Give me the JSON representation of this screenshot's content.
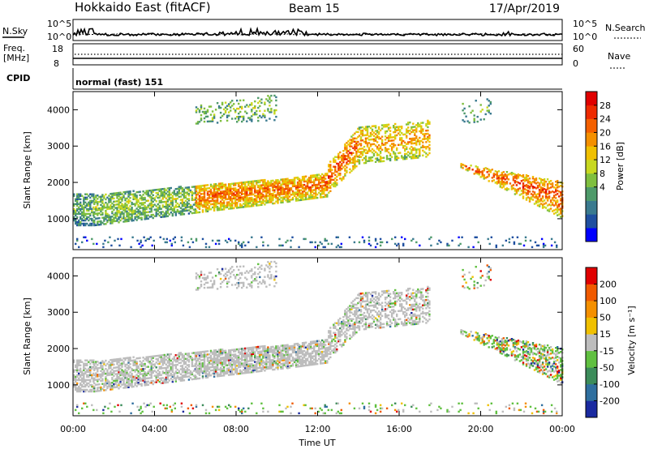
{
  "header": {
    "station": "Hokkaido East (fitACF)",
    "beam": "Beam 15",
    "date": "17/Apr/2019"
  },
  "top_panels": {
    "nsky_label": "N.Sky",
    "nsearch_label": "N.Search",
    "noise_ticks": [
      "10^5",
      "10^0"
    ],
    "freq_label_line1": "Freq.",
    "freq_label_line2": "[MHz]",
    "freq_ticks": [
      "18",
      "8"
    ],
    "nave_label": "Nave",
    "nave_ticks": [
      "60",
      "0"
    ],
    "cpid_label": "CPID",
    "cpid_value": "normal (fast) 151"
  },
  "chart_data": [
    {
      "type": "heatmap",
      "name": "power",
      "ylabel": "Slant Range [km]",
      "ylim": [
        150,
        4500
      ],
      "yticks": [
        "1000",
        "2000",
        "3000",
        "4000"
      ],
      "colorbar": {
        "label": "Power [dB]",
        "ticks": [
          "28",
          "24",
          "20",
          "16",
          "12",
          "8",
          "4"
        ],
        "colors": [
          "#0000ff",
          "#1f4fa0",
          "#3a7a8f",
          "#4e9a6a",
          "#7fbf3f",
          "#c8d820",
          "#f0c000",
          "#f49000",
          "#f46000",
          "#ee2a00",
          "#e00000"
        ]
      }
    },
    {
      "type": "heatmap",
      "name": "velocity",
      "ylabel": "Slant Range [km]",
      "xlabel": "Time UT",
      "ylim": [
        150,
        4500
      ],
      "yticks": [
        "1000",
        "2000",
        "3000",
        "4000"
      ],
      "xticks": [
        "00:00",
        "04:00",
        "08:00",
        "12:00",
        "16:00",
        "20:00",
        "00:00"
      ],
      "colorbar": {
        "label": "Velocity [m s⁻¹]",
        "ticks": [
          "200",
          "100",
          "50",
          "15",
          "-15",
          "-50",
          "-100",
          "-200"
        ],
        "colors": [
          "#1a2aa0",
          "#2f6f9f",
          "#3c8c5a",
          "#60c040",
          "#bdbdbd",
          "#f0c000",
          "#f49000",
          "#f05a00",
          "#e00000"
        ]
      }
    }
  ],
  "colors": {
    "ground_scatter": "#bdbdbd",
    "background": "#ffffff"
  }
}
